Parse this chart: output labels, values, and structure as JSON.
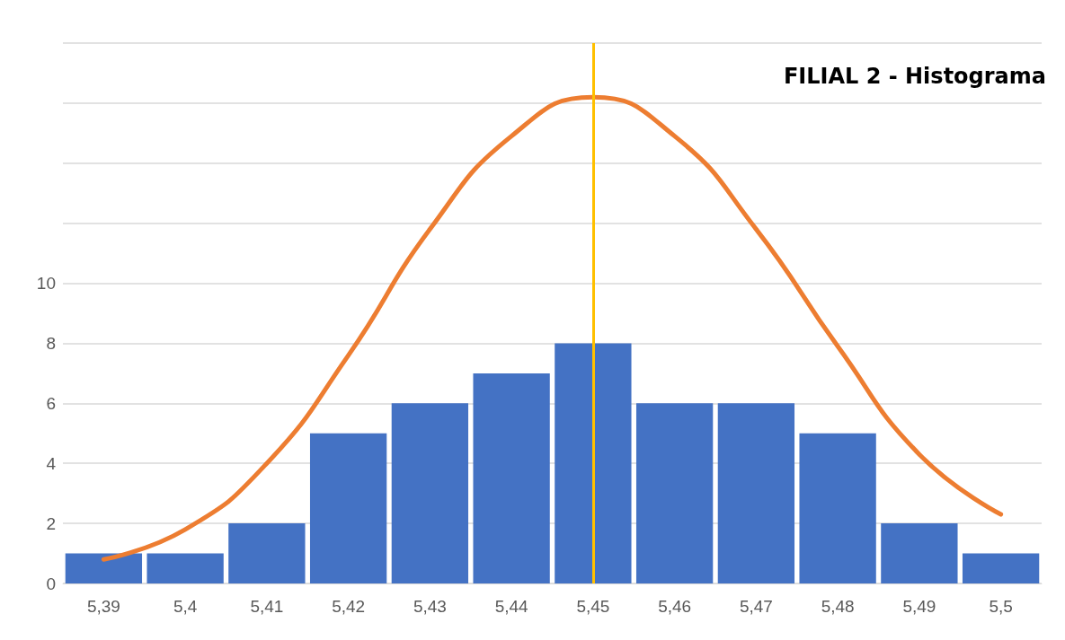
{
  "chart_data": {
    "type": "bar",
    "title": "FILIAL 2 - Histograma",
    "categories": [
      "5,39",
      "5,4",
      "5,41",
      "5,42",
      "5,43",
      "5,44",
      "5,45",
      "5,46",
      "5,47",
      "5,48",
      "5,49",
      "5,5"
    ],
    "series": [
      {
        "color": "#4472c4",
        "values": [
          1,
          1,
          2,
          5,
          6,
          7,
          8,
          6,
          6,
          5,
          2,
          1
        ]
      },
      {
        "type": "line",
        "color": "#ed7d31",
        "marker": "none",
        "values": [
          0.8,
          1.8,
          4.0,
          7.6,
          11.8,
          14.9,
          16.2,
          14.9,
          11.8,
          7.9,
          4.3,
          2.3
        ]
      }
    ],
    "ylim": [
      0,
      18
    ],
    "yticks": [
      0,
      2,
      4,
      6,
      8,
      10,
      {
        "value": 12,
        "label": null
      },
      {
        "value": 14,
        "label": null
      },
      {
        "value": 16,
        "label": null
      },
      {
        "value": 18,
        "label": null
      }
    ],
    "ref_lines": [
      {
        "axis": "x",
        "value": "5,45",
        "color": "#ffc000",
        "line_style": "solid"
      }
    ],
    "grid": "y"
  }
}
